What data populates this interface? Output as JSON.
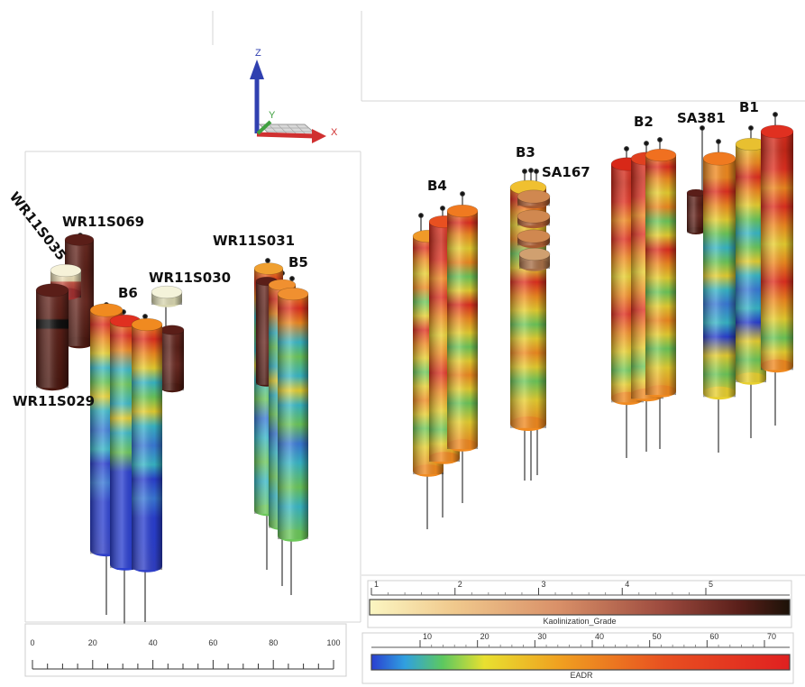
{
  "axis_triad": {
    "z": "Z",
    "y": "Y",
    "x": "X"
  },
  "left_scene": {
    "scale_ticks": [
      "0",
      "20",
      "40",
      "60",
      "80",
      "100"
    ],
    "labels": {
      "wr11s035": "WR11S035",
      "wr11s069": "WR11S069",
      "wr11s030": "WR11S030",
      "wr11s029": "WR11S029",
      "b6": "B6",
      "wr11s031": "WR11S031",
      "b5": "B5"
    }
  },
  "right_scene": {
    "labels": {
      "b4": "B4",
      "b3": "B3",
      "sa167": "SA167",
      "b2": "B2",
      "sa381": "SA381",
      "b1": "B1"
    }
  },
  "legend_kaolinization": {
    "title": "Kaolinization_Grade",
    "ticks": [
      "1",
      "2",
      "3",
      "4",
      "5"
    ],
    "colors": [
      "#fbf6c2",
      "#f0c98d",
      "#d99068",
      "#9c4a3e",
      "#5a1f1a",
      "#1c1208"
    ]
  },
  "legend_eadr": {
    "title": "EADR",
    "ticks": [
      "10",
      "20",
      "30",
      "40",
      "50",
      "60",
      "70"
    ],
    "colors": [
      "#2a3fd0",
      "#30a0e0",
      "#5cc860",
      "#e8e030",
      "#f0a020",
      "#e85020",
      "#e02020"
    ]
  }
}
